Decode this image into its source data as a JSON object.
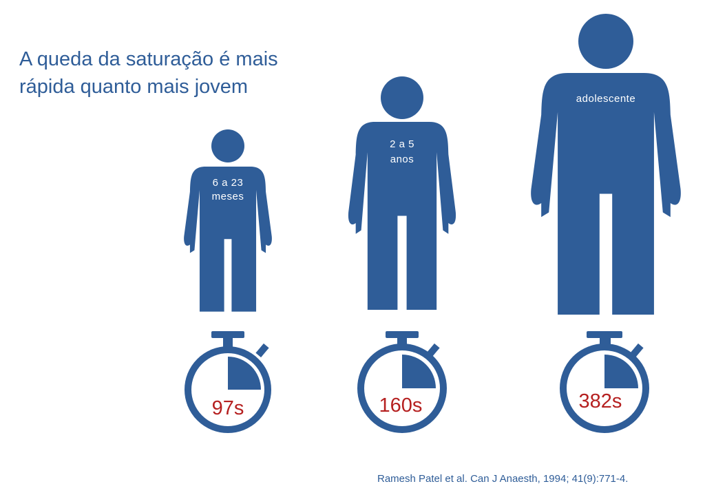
{
  "title": {
    "line1": "A queda da saturação é mais",
    "line2": "rápida quanto mais jovem"
  },
  "groups": [
    {
      "label_line1": "6 a 23",
      "label_line2": "meses",
      "time": "97s"
    },
    {
      "label_line1": "2 a 5",
      "label_line2": "anos",
      "time": "160s"
    },
    {
      "label_line1": "adolescente",
      "label_line2": "",
      "time": "382s"
    }
  ],
  "citation": "Ramesh Patel et al. Can J Anaesth, 1994; 41(9):771-4.",
  "colors": {
    "figure": "#2f5d98",
    "time_text": "#b52020",
    "label_text": "#ffffff"
  },
  "icons": [
    "person-icon",
    "stopwatch-icon"
  ]
}
